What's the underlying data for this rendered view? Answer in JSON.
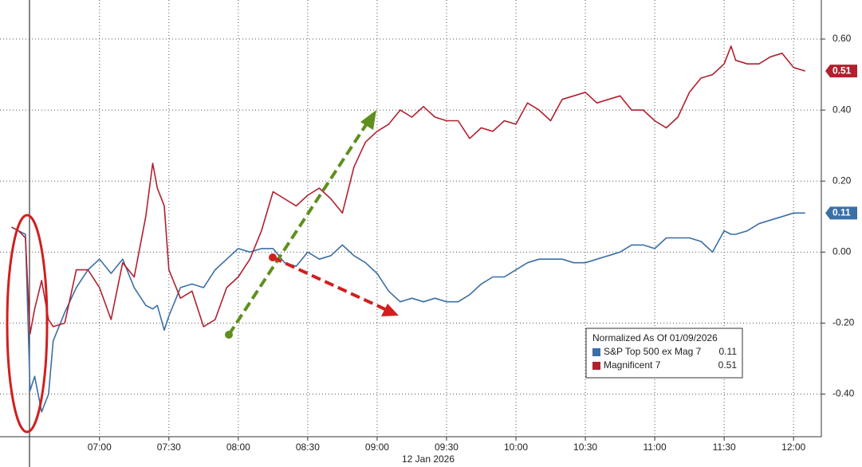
{
  "chart_data": {
    "type": "line",
    "x_label": "12 Jan 2026",
    "legend_title": "Normalized As Of 01/09/2026",
    "x": [
      "06:22",
      "06:25",
      "06:28",
      "06:30",
      "06:32",
      "06:35",
      "06:38",
      "06:40",
      "06:45",
      "06:50",
      "06:55",
      "07:00",
      "07:05",
      "07:10",
      "07:15",
      "07:20",
      "07:23",
      "07:25",
      "07:28",
      "07:30",
      "07:35",
      "07:40",
      "07:45",
      "07:50",
      "07:55",
      "08:00",
      "08:05",
      "08:10",
      "08:15",
      "08:20",
      "08:25",
      "08:30",
      "08:35",
      "08:40",
      "08:45",
      "08:50",
      "08:55",
      "09:00",
      "09:05",
      "09:10",
      "09:15",
      "09:20",
      "09:25",
      "09:30",
      "09:35",
      "09:40",
      "09:45",
      "09:50",
      "09:55",
      "10:00",
      "10:05",
      "10:10",
      "10:15",
      "10:20",
      "10:25",
      "10:30",
      "10:35",
      "10:40",
      "10:45",
      "10:50",
      "10:55",
      "11:00",
      "11:05",
      "11:10",
      "11:15",
      "11:20",
      "11:25",
      "11:30",
      "11:33",
      "11:35",
      "11:40",
      "11:45",
      "11:50",
      "11:55",
      "12:00",
      "12:05"
    ],
    "series": [
      {
        "name": "S&P Top 500 ex Mag 7",
        "color": "#3b6fa6",
        "last_value": 0.11,
        "values": [
          0.07,
          0.06,
          0.05,
          -0.39,
          -0.35,
          -0.45,
          -0.4,
          -0.25,
          -0.17,
          -0.1,
          -0.05,
          -0.02,
          -0.06,
          -0.02,
          -0.1,
          -0.15,
          -0.16,
          -0.15,
          -0.22,
          -0.18,
          -0.1,
          -0.09,
          -0.1,
          -0.05,
          -0.02,
          0.01,
          0.0,
          0.01,
          0.01,
          -0.03,
          -0.04,
          0.0,
          -0.02,
          -0.01,
          0.02,
          -0.01,
          -0.03,
          -0.06,
          -0.11,
          -0.14,
          -0.13,
          -0.14,
          -0.13,
          -0.14,
          -0.14,
          -0.12,
          -0.09,
          -0.07,
          -0.07,
          -0.05,
          -0.03,
          -0.02,
          -0.02,
          -0.02,
          -0.03,
          -0.03,
          -0.02,
          -0.01,
          0.0,
          0.02,
          0.02,
          0.01,
          0.04,
          0.04,
          0.04,
          0.03,
          0.0,
          0.06,
          0.05,
          0.05,
          0.06,
          0.08,
          0.09,
          0.1,
          0.11,
          0.11
        ]
      },
      {
        "name": "Magnificent 7",
        "color": "#b1202f",
        "last_value": 0.51,
        "values": [
          0.07,
          0.06,
          0.04,
          -0.23,
          -0.16,
          -0.08,
          -0.19,
          -0.21,
          -0.2,
          -0.05,
          -0.05,
          -0.1,
          -0.19,
          -0.03,
          -0.07,
          0.1,
          0.25,
          0.18,
          0.13,
          -0.05,
          -0.13,
          -0.11,
          -0.21,
          -0.19,
          -0.1,
          -0.07,
          -0.02,
          0.06,
          0.17,
          0.15,
          0.13,
          0.16,
          0.18,
          0.15,
          0.11,
          0.24,
          0.31,
          0.34,
          0.36,
          0.4,
          0.38,
          0.41,
          0.38,
          0.37,
          0.37,
          0.32,
          0.35,
          0.34,
          0.37,
          0.36,
          0.42,
          0.4,
          0.37,
          0.43,
          0.44,
          0.45,
          0.42,
          0.43,
          0.44,
          0.4,
          0.4,
          0.37,
          0.35,
          0.38,
          0.45,
          0.49,
          0.5,
          0.53,
          0.58,
          0.54,
          0.53,
          0.53,
          0.55,
          0.56,
          0.52,
          0.51
        ]
      }
    ],
    "xlim": [
      "06:17",
      "12:12"
    ],
    "xticks": [
      "07:00",
      "07:30",
      "08:00",
      "08:30",
      "09:00",
      "09:30",
      "10:00",
      "10:30",
      "11:00",
      "11:30",
      "12:00"
    ],
    "ylim": [
      -0.52,
      0.71
    ],
    "yticks": [
      {
        "value": -0.4,
        "label": "-0.40"
      },
      {
        "value": -0.2,
        "label": "-0.20"
      },
      {
        "value": 0,
        "label": "0.00"
      },
      {
        "value": 0.2,
        "label": "0.20"
      },
      {
        "value": 0.4,
        "label": "0.40"
      },
      {
        "value": 0.6,
        "label": "0.60"
      }
    ],
    "grid": true
  }
}
